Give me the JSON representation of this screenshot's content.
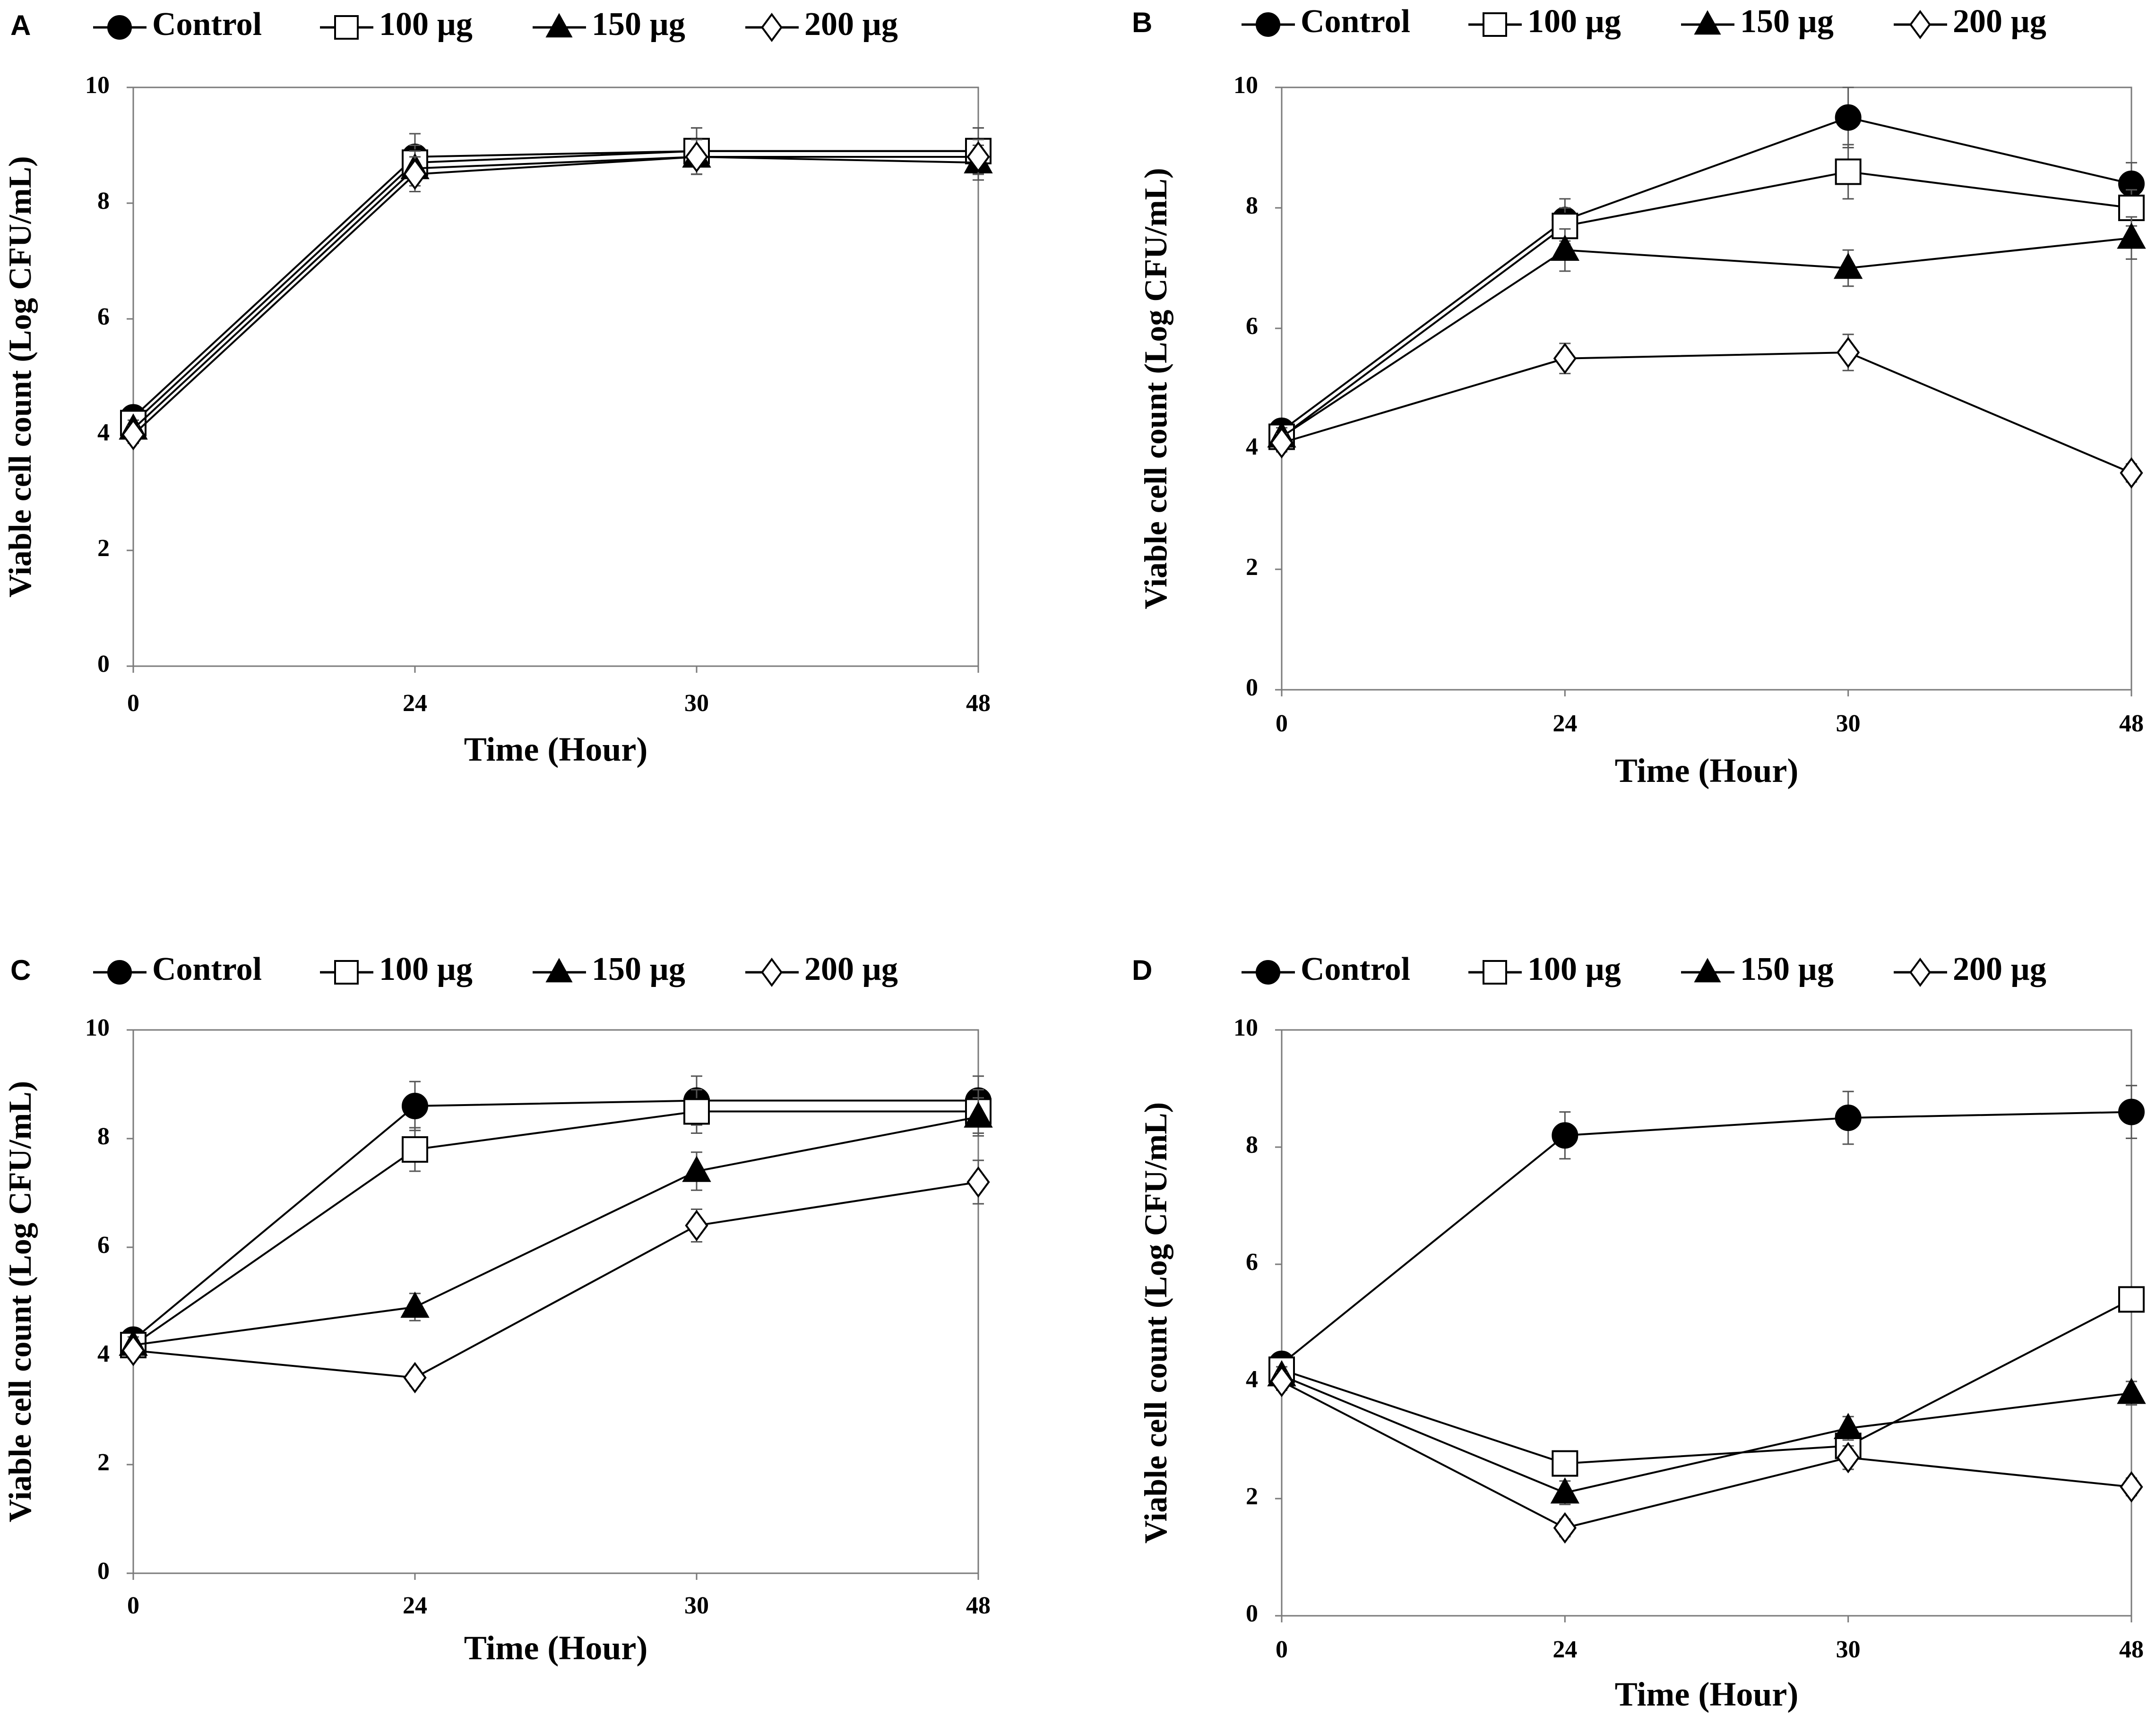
{
  "figure": {
    "series_styles": [
      {
        "name": "Control",
        "marker": "circle-filled-icon",
        "fill": "#000000"
      },
      {
        "name": "100 µg",
        "marker": "square-open-icon",
        "fill": "#ffffff"
      },
      {
        "name": "150 µg",
        "marker": "triangle-filled-icon",
        "fill": "#000000"
      },
      {
        "name": "200 µg",
        "marker": "diamond-open-icon",
        "fill": "#ffffff"
      }
    ],
    "line_color": "#000000"
  },
  "chart_data": [
    {
      "panel": "A",
      "type": "line",
      "xlabel": "Time (Hour)",
      "ylabel": "Viable cell count (Log CFU/mL)",
      "categories": [
        "0",
        "24",
        "30",
        "48"
      ],
      "ylim": [
        0,
        10
      ],
      "yticks": [
        "0",
        "2",
        "4",
        "6",
        "8",
        "10"
      ],
      "legend": [
        "Control",
        "100 µg",
        "150 µg",
        "200 µg"
      ],
      "series": [
        {
          "name": "Control",
          "values": [
            4.3,
            8.8,
            8.9,
            8.9
          ],
          "errors": [
            0.15,
            0.4,
            0.4,
            0.4
          ]
        },
        {
          "name": "100 µg",
          "values": [
            4.2,
            8.7,
            8.9,
            8.9
          ],
          "errors": [
            0.15,
            0.3,
            0.4,
            0.4
          ]
        },
        {
          "name": "150 µg",
          "values": [
            4.1,
            8.6,
            8.8,
            8.7
          ],
          "errors": [
            0.15,
            0.3,
            0.3,
            0.3
          ]
        },
        {
          "name": "200 µg",
          "values": [
            4.0,
            8.5,
            8.8,
            8.8
          ],
          "errors": [
            0.15,
            0.3,
            0.3,
            0.3
          ]
        }
      ]
    },
    {
      "panel": "B",
      "type": "line",
      "xlabel": "Time (Hour)",
      "ylabel": "Viable cell count (Log CFU/mL)",
      "categories": [
        "0",
        "24",
        "30",
        "48"
      ],
      "ylim": [
        0,
        10
      ],
      "yticks": [
        "0",
        "2",
        "4",
        "6",
        "8",
        "10"
      ],
      "legend": [
        "Control",
        "100 µg",
        "150 µg",
        "200 µg"
      ],
      "series": [
        {
          "name": "Control",
          "values": [
            4.3,
            7.8,
            9.5,
            8.4
          ],
          "errors": [
            0.15,
            0.35,
            0.5,
            0.35
          ]
        },
        {
          "name": "100 µg",
          "values": [
            4.2,
            7.7,
            8.6,
            8.0
          ],
          "errors": [
            0.15,
            0.3,
            0.45,
            0.3
          ]
        },
        {
          "name": "150 µg",
          "values": [
            4.2,
            7.3,
            7.0,
            7.5
          ],
          "errors": [
            0.15,
            0.35,
            0.3,
            0.35
          ]
        },
        {
          "name": "200 µg",
          "values": [
            4.1,
            5.5,
            5.6,
            3.6
          ],
          "errors": [
            0.15,
            0.25,
            0.3,
            0.15
          ]
        }
      ]
    },
    {
      "panel": "C",
      "type": "line",
      "xlabel": "Time (Hour)",
      "ylabel": "Viable cell count (Log CFU/mL)",
      "categories": [
        "0",
        "24",
        "30",
        "48"
      ],
      "ylim": [
        0,
        10
      ],
      "yticks": [
        "0",
        "2",
        "4",
        "6",
        "8",
        "10"
      ],
      "legend": [
        "Control",
        "100 µg",
        "150 µg",
        "200 µg"
      ],
      "series": [
        {
          "name": "Control",
          "values": [
            4.3,
            8.6,
            8.7,
            8.7
          ],
          "errors": [
            0.15,
            0.45,
            0.45,
            0.45
          ]
        },
        {
          "name": "100 µg",
          "values": [
            4.2,
            7.8,
            8.5,
            8.5
          ],
          "errors": [
            0.15,
            0.4,
            0.4,
            0.4
          ]
        },
        {
          "name": "150 µg",
          "values": [
            4.2,
            4.9,
            7.4,
            8.4
          ],
          "errors": [
            0.15,
            0.25,
            0.35,
            0.35
          ]
        },
        {
          "name": "200 µg",
          "values": [
            4.1,
            3.6,
            6.4,
            7.2
          ],
          "errors": [
            0.15,
            0.15,
            0.3,
            0.4
          ]
        }
      ]
    },
    {
      "panel": "D",
      "type": "line",
      "xlabel": "Time (Hour)",
      "ylabel": "Viable cell count (Log CFU/mL)",
      "categories": [
        "0",
        "24",
        "30",
        "48"
      ],
      "ylim": [
        0,
        10
      ],
      "yticks": [
        "0",
        "2",
        "4",
        "6",
        "8",
        "10"
      ],
      "legend": [
        "Control",
        "100 µg",
        "150 µg",
        "200 µg"
      ],
      "series": [
        {
          "name": "Control",
          "values": [
            4.3,
            8.2,
            8.5,
            8.6
          ],
          "errors": [
            0.15,
            0.4,
            0.45,
            0.45
          ]
        },
        {
          "name": "100 µg",
          "values": [
            4.2,
            2.6,
            2.9,
            5.4
          ],
          "errors": [
            0.15,
            0.2,
            0.2,
            0.2
          ]
        },
        {
          "name": "150 µg",
          "values": [
            4.1,
            2.1,
            3.2,
            3.8
          ],
          "errors": [
            0.15,
            0.2,
            0.2,
            0.2
          ]
        },
        {
          "name": "200 µg",
          "values": [
            4.0,
            1.5,
            2.7,
            2.2
          ],
          "errors": [
            0.15,
            0.15,
            0.2,
            0.15
          ]
        }
      ]
    }
  ]
}
